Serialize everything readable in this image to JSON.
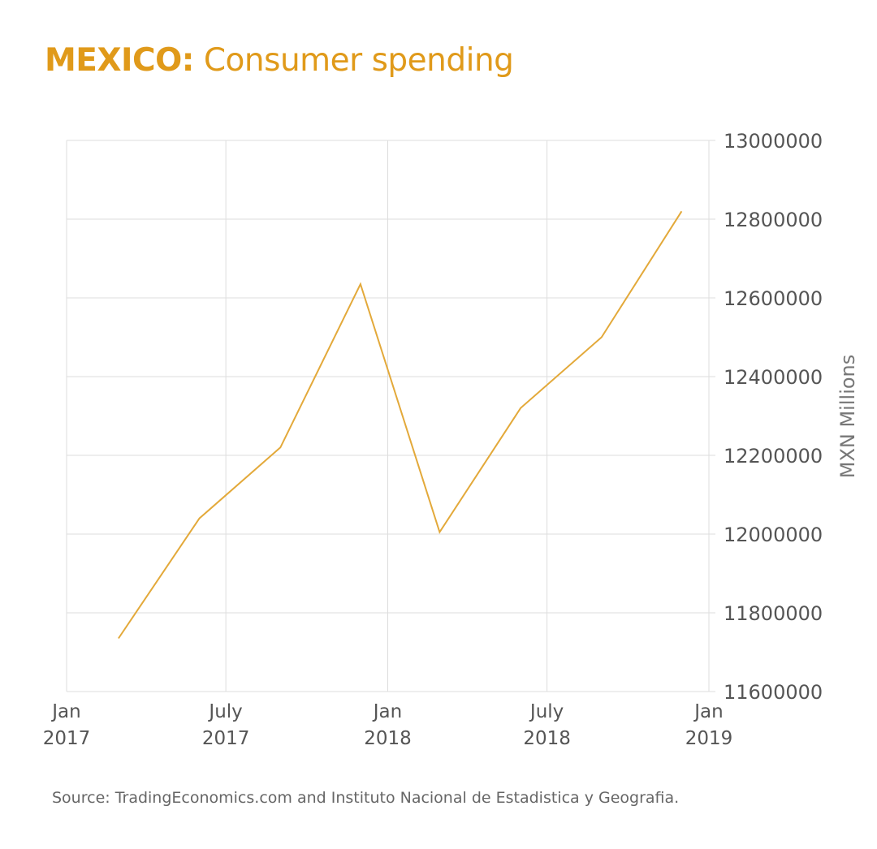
{
  "title": {
    "country": "MEXICO:",
    "subject": "Consumer spending"
  },
  "source": "Source: TradingEconomics.com and Instituto Nacional de Estadistica y Geografia.",
  "colors": {
    "accent": "#e09a1a",
    "line": "#e3a93a",
    "grid": "#dddddd",
    "text": "#555555"
  },
  "chart_data": {
    "type": "line",
    "title": "MEXICO: Consumer spending",
    "ylabel": "MXN Millions",
    "xlabel": "",
    "ylim": [
      11600000,
      13000000
    ],
    "xlim": [
      "2017-01-01",
      "2019-01-01"
    ],
    "y_ticks": [
      "13000000",
      "12800000",
      "12600000",
      "12400000",
      "12200000",
      "12000000",
      "11800000",
      "11600000"
    ],
    "x_ticks": [
      {
        "date": "2017-01-01",
        "line1": "Jan",
        "line2": "2017"
      },
      {
        "date": "2017-07-01",
        "line1": "July",
        "line2": "2017"
      },
      {
        "date": "2018-01-01",
        "line1": "Jan",
        "line2": "2018"
      },
      {
        "date": "2018-07-01",
        "line1": "July",
        "line2": "2018"
      },
      {
        "date": "2019-01-01",
        "line1": "Jan",
        "line2": "2019"
      }
    ],
    "grid": true,
    "y_axis_position": "right",
    "series": [
      {
        "points": [
          {
            "x": "2017-03-01",
            "y": 11735000
          },
          {
            "x": "2017-06-01",
            "y": 12040000
          },
          {
            "x": "2017-09-01",
            "y": 12220000
          },
          {
            "x": "2017-12-01",
            "y": 12635000
          },
          {
            "x": "2018-03-01",
            "y": 12005000
          },
          {
            "x": "2018-06-01",
            "y": 12320000
          },
          {
            "x": "2018-09-01",
            "y": 12500000
          },
          {
            "x": "2018-12-01",
            "y": 12820000
          }
        ]
      }
    ]
  }
}
